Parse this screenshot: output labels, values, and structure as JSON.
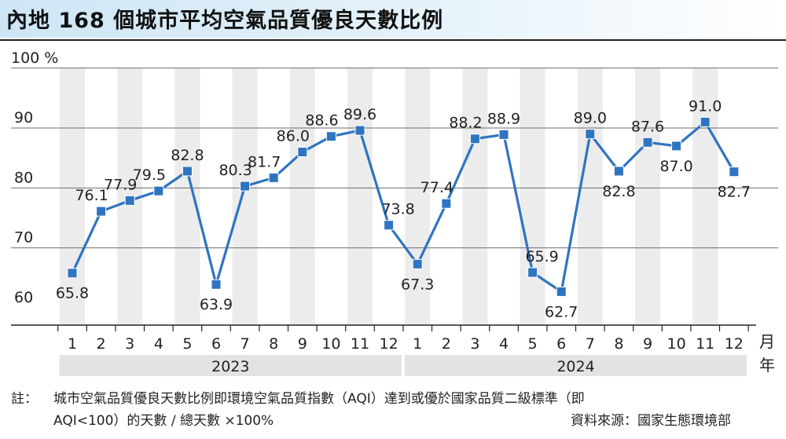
{
  "title": "內地 168 個城市平均空氣品質優良天數比例",
  "chart_data": {
    "type": "line",
    "title": "內地 168 個城市平均空氣品質優良天數比例",
    "ylabel_unit": "100 %",
    "y_ticks": [
      "60",
      "70",
      "80",
      "90"
    ],
    "ylim": [
      57,
      100
    ],
    "month_unit_label": "月",
    "year_unit_label": "年",
    "categories": [
      "1",
      "2",
      "3",
      "4",
      "5",
      "6",
      "7",
      "8",
      "9",
      "10",
      "11",
      "12",
      "1",
      "2",
      "3",
      "4",
      "5",
      "6",
      "7",
      "8",
      "9",
      "10",
      "11",
      "12"
    ],
    "years": [
      {
        "label": "2023",
        "start": 0,
        "end": 11
      },
      {
        "label": "2024",
        "start": 12,
        "end": 23
      }
    ],
    "series": [
      {
        "values": [
          65.8,
          76.1,
          77.9,
          79.5,
          82.8,
          63.9,
          80.3,
          81.7,
          86.0,
          88.6,
          89.6,
          73.8,
          67.3,
          77.4,
          88.2,
          88.9,
          65.9,
          62.7,
          89.0,
          82.8,
          87.6,
          87.0,
          91.0,
          82.7
        ],
        "labels": [
          "65.8",
          "76.1",
          "77.9",
          "79.5",
          "82.8",
          "63.9",
          "80.3",
          "81.7",
          "86.0",
          "88.6",
          "89.6",
          "73.8",
          "67.3",
          "77.4",
          "88.2",
          "88.9",
          "65.9",
          "62.7",
          "89.0",
          "82.8",
          "87.6",
          "87.0",
          "91.0",
          "82.7"
        ],
        "color": "#2f74c0"
      }
    ],
    "grid": true
  },
  "notes": {
    "prefix": "註：",
    "line1": "城市空氣品質優良天數比例即環境空氣品質指數（AQI）達到或優於國家品質二級標準（即",
    "line2": "AQI<100）的天數 / 總天數 ×100%",
    "source": "資料來源：國家生態環境部"
  },
  "colors": {
    "line": "#2f74c0",
    "marker": "#2f74c0",
    "stripe": "#ececec",
    "grid": "#6e6e6e",
    "year_band": "#e3e3e3"
  }
}
